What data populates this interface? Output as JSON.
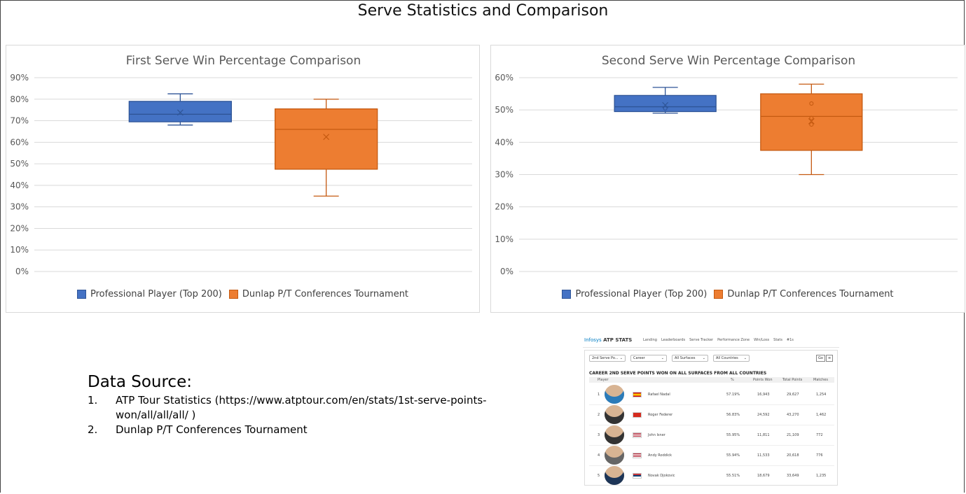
{
  "page_title": "Serve Statistics and Comparison",
  "colors": {
    "professional": "#4472C4",
    "dunlap": "#ED7D31",
    "grid": "#d9d9d9",
    "axis_text": "#595959"
  },
  "chart_data": [
    {
      "type": "box",
      "title": "First Serve Win Percentage Comparison",
      "ylim": [
        0,
        90
      ],
      "yticks": [
        "0%",
        "10%",
        "20%",
        "30%",
        "40%",
        "50%",
        "60%",
        "70%",
        "80%",
        "90%"
      ],
      "ytick_values": [
        0,
        10,
        20,
        30,
        40,
        50,
        60,
        70,
        80,
        90
      ],
      "grid": true,
      "legend_position": "bottom",
      "series": [
        {
          "name": "Professional Player (Top 200)",
          "min": 68,
          "q1": 69.5,
          "median": 73,
          "q3": 79,
          "max": 82.5,
          "mean": 73.8,
          "outliers": []
        },
        {
          "name": "Dunlap P/T Conferences Tournament",
          "min": 35,
          "q1": 47.5,
          "median": 66,
          "q3": 75.5,
          "max": 80,
          "mean": 62.5,
          "outliers": []
        }
      ]
    },
    {
      "type": "box",
      "title": "Second Serve Win Percentage Comparison",
      "ylim": [
        0,
        60
      ],
      "yticks": [
        "0%",
        "10%",
        "20%",
        "30%",
        "40%",
        "50%",
        "60%"
      ],
      "ytick_values": [
        0,
        10,
        20,
        30,
        40,
        50,
        60
      ],
      "grid": true,
      "legend_position": "bottom",
      "series": [
        {
          "name": "Professional Player (Top 200)",
          "min": 49,
          "q1": 49.5,
          "median": 51,
          "q3": 54.5,
          "max": 57,
          "mean": 51.5,
          "outliers": [
            50.5
          ]
        },
        {
          "name": "Dunlap P/T Conferences Tournament",
          "min": 30,
          "q1": 37.5,
          "median": 48,
          "q3": 55,
          "max": 58,
          "mean": 46.5,
          "outliers": [
            52,
            47.5,
            45.5
          ]
        }
      ]
    }
  ],
  "data_source": {
    "title": "Data Source:",
    "items": [
      {
        "num": "1.",
        "text": "ATP Tour Statistics (https://www.atptour.com/en/stats/1st-serve-points-won/all/all/all/ )"
      },
      {
        "num": "2.",
        "text": "Dunlap P/T Conferences Tournament"
      }
    ]
  },
  "atp_screenshot": {
    "logo_infosys": "Infosys",
    "logo_atp": " ATP STATS",
    "nav": [
      "Landing",
      "Leaderboards",
      "Serve Tracker",
      "Performance Zone",
      "Win/Loss",
      "Stats",
      "#1s"
    ],
    "filters": [
      "2nd Serve Po...",
      "Career",
      "All Surfaces",
      "All Countries"
    ],
    "go_label": "Go",
    "heading": "CAREER 2ND SERVE POINTS WON ON ALL SURFACES FROM ALL COUNTRIES",
    "columns": [
      "Player",
      "%",
      "Points Won",
      "Total Points",
      "Matches"
    ],
    "rows": [
      {
        "rank": "1",
        "name": "Rafael Nadal",
        "pct": "57.19%",
        "won": "16,943",
        "total": "29,627",
        "matches": "1,254",
        "flag": "spain-flag"
      },
      {
        "rank": "2",
        "name": "Roger Federer",
        "pct": "56.83%",
        "won": "24,592",
        "total": "43,270",
        "matches": "1,462",
        "flag": "switzerland-flag"
      },
      {
        "rank": "3",
        "name": "John Isner",
        "pct": "55.95%",
        "won": "11,811",
        "total": "21,109",
        "matches": "772",
        "flag": "usa-flag"
      },
      {
        "rank": "4",
        "name": "Andy Roddick",
        "pct": "55.94%",
        "won": "11,533",
        "total": "20,618",
        "matches": "776",
        "flag": "usa-flag"
      },
      {
        "rank": "5",
        "name": "Novak Djokovic",
        "pct": "55.51%",
        "won": "18,679",
        "total": "33,649",
        "matches": "1,235",
        "flag": "serbia-flag"
      }
    ]
  }
}
